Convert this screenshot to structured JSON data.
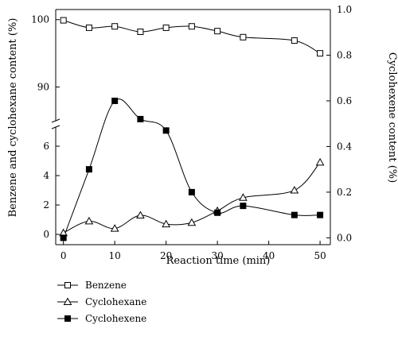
{
  "chart_data": {
    "type": "line",
    "xlabel": "Reaction time (min)",
    "ylabel_left": "Benzene and cyclohexane content (%)",
    "ylabel_right": "Cyclohexene content (%)",
    "x_ticks": [
      "0",
      "10",
      "20",
      "30",
      "40",
      "50"
    ],
    "xlim": [
      -1.5,
      52
    ],
    "y_left_upper": {
      "range": [
        85,
        101.5
      ],
      "ticks": [
        {
          "value": 90,
          "label": "90"
        },
        {
          "value": 100,
          "label": "100"
        }
      ]
    },
    "y_left_lower": {
      "range": [
        -0.7,
        7.3
      ],
      "ticks": [
        {
          "value": 0,
          "label": "0"
        },
        {
          "value": 2,
          "label": "2"
        },
        {
          "value": 4,
          "label": "4"
        },
        {
          "value": 6,
          "label": "6"
        }
      ]
    },
    "y_right": {
      "range": [
        -0.03,
        1.0
      ],
      "ticks": [
        "0.0",
        "0.2",
        "0.4",
        "0.6",
        "0.8",
        "1.0"
      ]
    },
    "series": [
      {
        "name": "Benzene",
        "axis": "left-upper",
        "marker": "open-square",
        "x": [
          0,
          5,
          10,
          15,
          20,
          25,
          30,
          35,
          45,
          50
        ],
        "y": [
          99.9,
          98.8,
          99.0,
          98.2,
          98.8,
          99.0,
          98.3,
          97.4,
          96.9,
          95.0
        ]
      },
      {
        "name": "Cyclohexane",
        "axis": "left-lower",
        "marker": "open-triangle",
        "x": [
          0,
          5,
          10,
          15,
          20,
          25,
          30,
          35,
          45,
          50
        ],
        "y": [
          0.1,
          0.9,
          0.4,
          1.3,
          0.7,
          0.8,
          1.6,
          2.5,
          3.0,
          4.9
        ]
      },
      {
        "name": "Cyclohexene",
        "axis": "right",
        "marker": "filled-square",
        "x": [
          0,
          5,
          10,
          15,
          20,
          25,
          30,
          35,
          45,
          50
        ],
        "y": [
          0.0,
          0.3,
          0.6,
          0.52,
          0.47,
          0.2,
          0.11,
          0.14,
          0.1,
          0.1
        ]
      }
    ],
    "legend_position": "bottom-left"
  }
}
